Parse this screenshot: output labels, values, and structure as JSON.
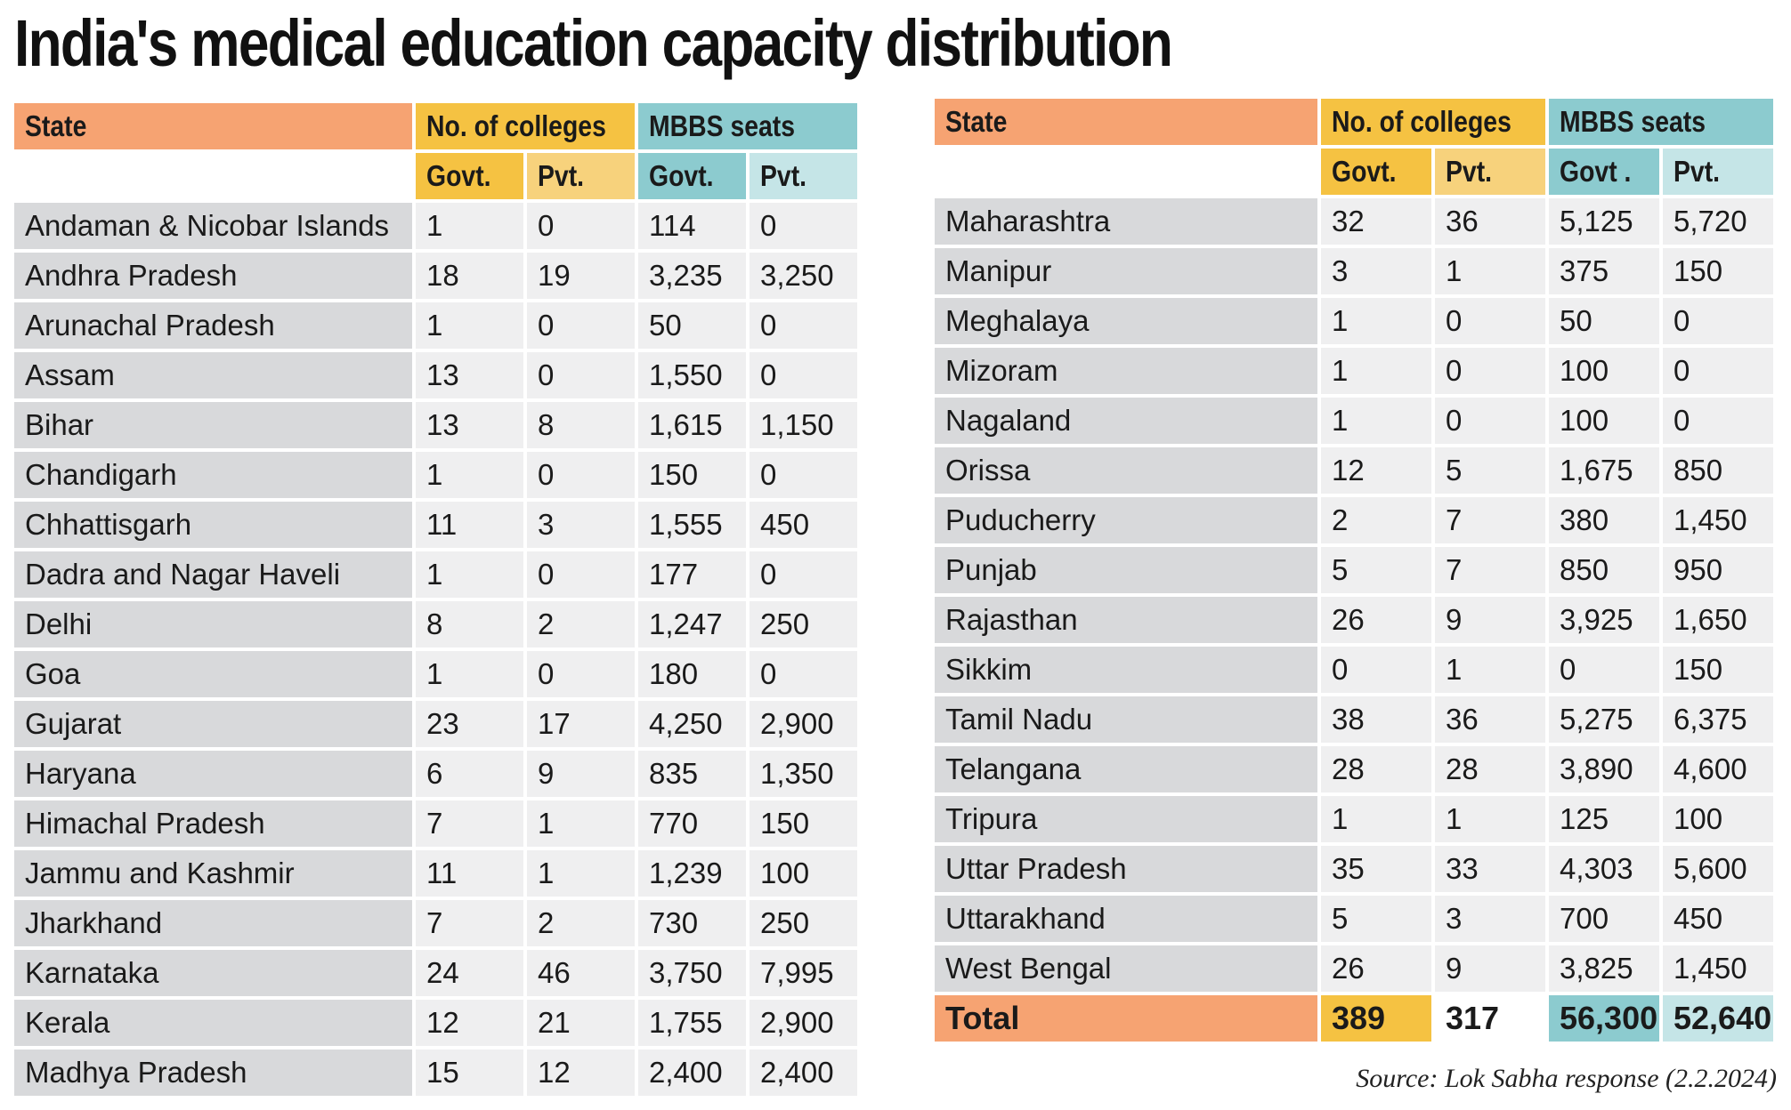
{
  "title": "India's medical education capacity distribution",
  "headers": {
    "state": "State",
    "colleges": "No. of colleges",
    "seats": "MBBS seats",
    "govt": "Govt.",
    "pvt": "Pvt.",
    "govt_seats_right": "Govt ."
  },
  "left_rows": [
    {
      "state": "Andaman & Nicobar Islands",
      "col_govt": "1",
      "col_pvt": "0",
      "seat_govt": "114",
      "seat_pvt": "0"
    },
    {
      "state": "Andhra Pradesh",
      "col_govt": "18",
      "col_pvt": "19",
      "seat_govt": "3,235",
      "seat_pvt": "3,250"
    },
    {
      "state": "Arunachal Pradesh",
      "col_govt": "1",
      "col_pvt": "0",
      "seat_govt": "50",
      "seat_pvt": "0"
    },
    {
      "state": "Assam",
      "col_govt": "13",
      "col_pvt": "0",
      "seat_govt": "1,550",
      "seat_pvt": "0"
    },
    {
      "state": "Bihar",
      "col_govt": "13",
      "col_pvt": "8",
      "seat_govt": "1,615",
      "seat_pvt": "1,150"
    },
    {
      "state": "Chandigarh",
      "col_govt": "1",
      "col_pvt": "0",
      "seat_govt": "150",
      "seat_pvt": "0"
    },
    {
      "state": "Chhattisgarh",
      "col_govt": "11",
      "col_pvt": "3",
      "seat_govt": "1,555",
      "seat_pvt": "450"
    },
    {
      "state": "Dadra and Nagar Haveli",
      "col_govt": "1",
      "col_pvt": "0",
      "seat_govt": "177",
      "seat_pvt": "0"
    },
    {
      "state": "Delhi",
      "col_govt": "8",
      "col_pvt": "2",
      "seat_govt": "1,247",
      "seat_pvt": "250"
    },
    {
      "state": "Goa",
      "col_govt": "1",
      "col_pvt": "0",
      "seat_govt": "180",
      "seat_pvt": "0"
    },
    {
      "state": "Gujarat",
      "col_govt": "23",
      "col_pvt": "17",
      "seat_govt": "4,250",
      "seat_pvt": "2,900"
    },
    {
      "state": "Haryana",
      "col_govt": "6",
      "col_pvt": "9",
      "seat_govt": "835",
      "seat_pvt": "1,350"
    },
    {
      "state": "Himachal Pradesh",
      "col_govt": "7",
      "col_pvt": "1",
      "seat_govt": "770",
      "seat_pvt": "150"
    },
    {
      "state": "Jammu and Kashmir",
      "col_govt": "11",
      "col_pvt": "1",
      "seat_govt": "1,239",
      "seat_pvt": "100"
    },
    {
      "state": "Jharkhand",
      "col_govt": "7",
      "col_pvt": "2",
      "seat_govt": "730",
      "seat_pvt": "250"
    },
    {
      "state": "Karnataka",
      "col_govt": "24",
      "col_pvt": "46",
      "seat_govt": "3,750",
      "seat_pvt": "7,995"
    },
    {
      "state": "Kerala",
      "col_govt": "12",
      "col_pvt": "21",
      "seat_govt": "1,755",
      "seat_pvt": "2,900"
    },
    {
      "state": "Madhya Pradesh",
      "col_govt": "15",
      "col_pvt": "12",
      "seat_govt": "2,400",
      "seat_pvt": "2,400"
    }
  ],
  "right_rows": [
    {
      "state": "Maharashtra",
      "col_govt": "32",
      "col_pvt": "36",
      "seat_govt": "5,125",
      "seat_pvt": "5,720"
    },
    {
      "state": "Manipur",
      "col_govt": "3",
      "col_pvt": "1",
      "seat_govt": "375",
      "seat_pvt": "150"
    },
    {
      "state": "Meghalaya",
      "col_govt": "1",
      "col_pvt": "0",
      "seat_govt": "50",
      "seat_pvt": "0"
    },
    {
      "state": "Mizoram",
      "col_govt": "1",
      "col_pvt": "0",
      "seat_govt": "100",
      "seat_pvt": "0"
    },
    {
      "state": "Nagaland",
      "col_govt": "1",
      "col_pvt": "0",
      "seat_govt": "100",
      "seat_pvt": "0"
    },
    {
      "state": "Orissa",
      "col_govt": "12",
      "col_pvt": "5",
      "seat_govt": "1,675",
      "seat_pvt": "850"
    },
    {
      "state": "Puducherry",
      "col_govt": "2",
      "col_pvt": "7",
      "seat_govt": "380",
      "seat_pvt": "1,450"
    },
    {
      "state": "Punjab",
      "col_govt": "5",
      "col_pvt": "7",
      "seat_govt": "850",
      "seat_pvt": "950"
    },
    {
      "state": "Rajasthan",
      "col_govt": "26",
      "col_pvt": "9",
      "seat_govt": "3,925",
      "seat_pvt": "1,650"
    },
    {
      "state": "Sikkim",
      "col_govt": "0",
      "col_pvt": "1",
      "seat_govt": "0",
      "seat_pvt": "150"
    },
    {
      "state": "Tamil Nadu",
      "col_govt": "38",
      "col_pvt": "36",
      "seat_govt": "5,275",
      "seat_pvt": "6,375"
    },
    {
      "state": "Telangana",
      "col_govt": "28",
      "col_pvt": "28",
      "seat_govt": "3,890",
      "seat_pvt": "4,600"
    },
    {
      "state": "Tripura",
      "col_govt": "1",
      "col_pvt": "1",
      "seat_govt": "125",
      "seat_pvt": "100"
    },
    {
      "state": "Uttar Pradesh",
      "col_govt": "35",
      "col_pvt": "33",
      "seat_govt": "4,303",
      "seat_pvt": "5,600"
    },
    {
      "state": "Uttarakhand",
      "col_govt": "5",
      "col_pvt": "3",
      "seat_govt": "700",
      "seat_pvt": "450"
    },
    {
      "state": "West Bengal",
      "col_govt": "26",
      "col_pvt": "9",
      "seat_govt": "3,825",
      "seat_pvt": "1,450"
    }
  ],
  "total": {
    "label": "Total",
    "col_govt": "389",
    "col_pvt": "317",
    "seat_govt": "56,300",
    "seat_pvt": "52,640"
  },
  "source": "Source: Lok Sabha response (2.2.2024)",
  "colors": {
    "state_header": "#f6a372",
    "colleges_header": "#f5c242",
    "colleges_pvt_header": "#f7d27c",
    "seats_header": "#8ccbcf",
    "seats_pvt_header": "#c5e5e7",
    "state_cell": "#d8d9db",
    "data_cell": "#efeff0"
  }
}
